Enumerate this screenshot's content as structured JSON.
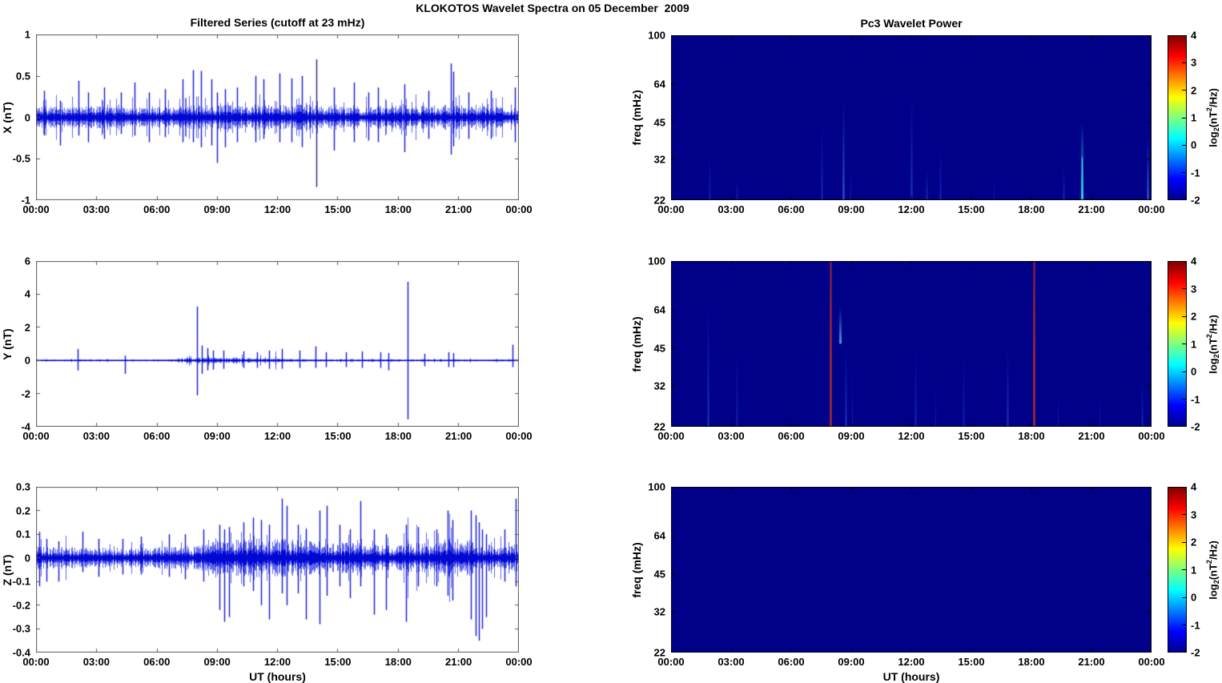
{
  "figure": {
    "title": "KLOKOTOS Wavelet Spectra on 05 December  2009"
  },
  "axes": {
    "time_ticks": [
      "00:00",
      "03:00",
      "06:00",
      "09:00",
      "12:00",
      "15:00",
      "18:00",
      "21:00",
      "00:00"
    ],
    "xlabel": "UT (hours)",
    "series_color": "#0008D2",
    "series_halo_color": "#1E28E6",
    "heatmap_background": "#000089",
    "line_axis_color": "#5a5a5a",
    "heat_axis_color": "#000000",
    "jet_stops": [
      [
        "0%",
        "#00008F"
      ],
      [
        "12.5%",
        "#0000FF"
      ],
      [
        "37.5%",
        "#00FFFF"
      ],
      [
        "62.5%",
        "#FFFF00"
      ],
      [
        "87.5%",
        "#FF0000"
      ],
      [
        "100%",
        "#800000"
      ]
    ]
  },
  "colorbar": {
    "values": [
      4,
      3,
      2,
      1,
      0,
      -1,
      -2
    ],
    "range": [
      -2,
      4
    ],
    "label_parts": {
      "prefix": "log",
      "sub": "2",
      "mid": "(nT",
      "sup": "2",
      "suffix": "/Hz)"
    }
  },
  "chart_data": [
    {
      "id": "x-filtered-series",
      "type": "line",
      "title": "Filtered Series (cutoff at 23 mHz)",
      "ylabel": "X (nT)",
      "ylim": [
        -1,
        1
      ],
      "yticks": [
        1,
        0.5,
        0,
        -0.5,
        -1
      ],
      "x_hours": [
        0,
        24
      ],
      "seed": 7,
      "noise": {
        "base": 0.085,
        "cap": 0.5,
        "envelope": [
          1,
          1,
          1,
          1,
          1,
          1,
          1,
          1.05,
          1.1,
          1.1,
          1.1,
          1.15,
          1.15,
          1.15,
          1.1,
          1.05,
          1,
          1,
          1.05,
          1.05,
          1.15,
          1.1,
          1,
          1
        ]
      },
      "spikes": [
        [
          0.4,
          0.32,
          -0.22
        ],
        [
          1.2,
          0.2,
          -0.34
        ],
        [
          2.1,
          0.44,
          -0.22
        ],
        [
          2.6,
          0.3,
          -0.3
        ],
        [
          3.4,
          0.36,
          -0.26
        ],
        [
          4.2,
          0.3,
          -0.2
        ],
        [
          4.9,
          0.42,
          -0.22
        ],
        [
          5.6,
          0.3,
          -0.3
        ],
        [
          6.4,
          0.34,
          -0.24
        ],
        [
          7.3,
          0.46,
          -0.3
        ],
        [
          7.8,
          0.57,
          -0.3
        ],
        [
          8.2,
          0.56,
          -0.36
        ],
        [
          8.7,
          0.46,
          -0.34
        ],
        [
          9.0,
          0.3,
          -0.55
        ],
        [
          9.4,
          0.34,
          -0.36
        ],
        [
          10.0,
          0.36,
          -0.3
        ],
        [
          10.9,
          0.5,
          -0.3
        ],
        [
          11.3,
          0.46,
          -0.26
        ],
        [
          12.1,
          0.53,
          -0.3
        ],
        [
          12.7,
          0.47,
          -0.3
        ],
        [
          13.2,
          0.5,
          -0.36
        ],
        [
          13.95,
          0.7,
          -0.84,
          "#15157a"
        ],
        [
          14.8,
          0.36,
          -0.4
        ],
        [
          15.8,
          0.42,
          -0.3
        ],
        [
          16.5,
          0.3,
          -0.28
        ],
        [
          17.0,
          0.36,
          -0.3
        ],
        [
          18.3,
          0.4,
          -0.42
        ],
        [
          19.5,
          0.32,
          -0.26
        ],
        [
          20.6,
          0.65,
          -0.45
        ],
        [
          20.75,
          0.55,
          -0.35
        ],
        [
          21.5,
          0.3,
          -0.26
        ],
        [
          22.6,
          0.32,
          -0.26
        ],
        [
          23.8,
          0.36,
          -0.3
        ]
      ]
    },
    {
      "id": "y-filtered-series",
      "type": "line",
      "title": "",
      "ylabel": "Y (nT)",
      "ylim": [
        -4,
        6
      ],
      "yticks": [
        6,
        4,
        2,
        0,
        -2,
        -4
      ],
      "x_hours": [
        0,
        24
      ],
      "seed": 13,
      "noise": {
        "base": 0.04,
        "cap": 0.55,
        "envelope": [
          0.7,
          0.7,
          0.7,
          0.7,
          0.7,
          0.7,
          0.7,
          1.2,
          3.2,
          2.6,
          2.2,
          2.2,
          1.8,
          1.2,
          1.1,
          1,
          1,
          0.9,
          0.9,
          0.8,
          0.8,
          0.8,
          0.8,
          0.9
        ]
      },
      "spikes": [
        [
          2.05,
          0.7,
          -0.6
        ],
        [
          4.4,
          0.3,
          -0.8
        ],
        [
          8.0,
          3.25,
          -2.1
        ],
        [
          8.25,
          0.9,
          -0.8
        ],
        [
          8.5,
          0.75,
          -0.6
        ],
        [
          8.8,
          0.6,
          -0.55
        ],
        [
          9.3,
          0.6,
          -0.5
        ],
        [
          10.3,
          0.55,
          -0.45
        ],
        [
          11.0,
          0.5,
          -0.45
        ],
        [
          11.6,
          0.6,
          -0.5
        ],
        [
          12.2,
          0.7,
          -0.5
        ],
        [
          13.1,
          0.6,
          -0.45
        ],
        [
          13.9,
          0.85,
          -0.45
        ],
        [
          14.4,
          0.5,
          -0.4
        ],
        [
          15.4,
          0.5,
          -0.4
        ],
        [
          16.2,
          0.55,
          -0.45
        ],
        [
          17.1,
          0.5,
          -0.45
        ],
        [
          17.5,
          0.45,
          -0.6
        ],
        [
          18.45,
          4.75,
          -3.55
        ],
        [
          19.3,
          0.4,
          -0.35
        ],
        [
          20.5,
          0.5,
          -0.4
        ],
        [
          20.75,
          0.45,
          -0.4
        ],
        [
          23.7,
          0.95,
          -0.4
        ]
      ]
    },
    {
      "id": "z-filtered-series",
      "type": "line",
      "title": "",
      "ylabel": "Z (nT)",
      "xlabel": "UT (hours)",
      "ylim": [
        -0.4,
        0.3
      ],
      "yticks": [
        0.3,
        0.2,
        0.1,
        0,
        -0.1,
        -0.2,
        -0.3,
        -0.4
      ],
      "x_hours": [
        0,
        24
      ],
      "seed": 21,
      "noise": {
        "base": 0.03,
        "cap": 0.2,
        "envelope": [
          1.1,
          0.9,
          0.9,
          0.9,
          0.9,
          0.9,
          1,
          1,
          1.2,
          1.5,
          1.6,
          1.7,
          1.7,
          1.6,
          1.5,
          1.4,
          1.3,
          1.2,
          1.2,
          1.3,
          1.5,
          1.7,
          1.4,
          1.1
        ]
      },
      "spikes": [
        [
          0.15,
          0.11,
          -0.12
        ],
        [
          0.5,
          0.08,
          -0.1
        ],
        [
          1.1,
          0.07,
          -0.1
        ],
        [
          2.3,
          0.11,
          -0.06
        ],
        [
          3.1,
          0.08,
          -0.08
        ],
        [
          4.3,
          0.08,
          -0.07
        ],
        [
          5.2,
          0.09,
          -0.07
        ],
        [
          6.6,
          0.1,
          -0.08
        ],
        [
          7.4,
          0.1,
          -0.09
        ],
        [
          8.3,
          0.12,
          -0.1
        ],
        [
          9.1,
          0.14,
          -0.22
        ],
        [
          9.35,
          0.12,
          -0.27
        ],
        [
          9.6,
          0.13,
          -0.25
        ],
        [
          10.3,
          0.15,
          -0.12
        ],
        [
          10.8,
          0.17,
          -0.14
        ],
        [
          11.2,
          0.16,
          -0.2
        ],
        [
          11.6,
          0.14,
          -0.26
        ],
        [
          12.2,
          0.25,
          -0.15
        ],
        [
          12.45,
          0.22,
          -0.2
        ],
        [
          13.0,
          0.14,
          -0.15
        ],
        [
          13.4,
          0.12,
          -0.26
        ],
        [
          14.1,
          0.2,
          -0.28
        ],
        [
          14.45,
          0.22,
          -0.16
        ],
        [
          15.1,
          0.14,
          -0.12
        ],
        [
          15.6,
          0.12,
          -0.17
        ],
        [
          16.1,
          0.24,
          -0.12
        ],
        [
          16.8,
          0.12,
          -0.24
        ],
        [
          17.4,
          0.1,
          -0.22
        ],
        [
          18.4,
          0.14,
          -0.27
        ],
        [
          19.0,
          0.13,
          -0.12
        ],
        [
          19.9,
          0.12,
          -0.12
        ],
        [
          20.45,
          0.2,
          -0.16
        ],
        [
          20.7,
          0.16,
          -0.18
        ],
        [
          21.6,
          0.2,
          -0.26
        ],
        [
          21.85,
          0.18,
          -0.33
        ],
        [
          22.0,
          0.15,
          -0.35
        ],
        [
          22.15,
          0.12,
          -0.3
        ],
        [
          22.35,
          0.1,
          -0.25
        ],
        [
          23.3,
          0.12,
          -0.1
        ],
        [
          23.85,
          0.25,
          -0.12
        ]
      ]
    },
    {
      "id": "pc3-wavelet-power-x",
      "type": "heatmap",
      "title": "Pc3 Wavelet Power",
      "ylabel": "freq (mHz)",
      "ylim": [
        22,
        100
      ],
      "yticks": [
        100,
        64,
        45,
        32,
        22
      ],
      "log_scale": true,
      "clim": [
        -2,
        4
      ],
      "x_hours": [
        0,
        24
      ],
      "streaks": [
        [
          1.9,
          22,
          34,
          "#2346E6",
          2,
          0.5,
          1
        ],
        [
          3.3,
          22,
          27,
          "#2346E6",
          2,
          0.45,
          1
        ],
        [
          7.5,
          22,
          46,
          "#2B58F0",
          2,
          0.5,
          1
        ],
        [
          8.6,
          22,
          57,
          "#55AAF5",
          2,
          0.6,
          1
        ],
        [
          8.95,
          22,
          30,
          "#2B58F0",
          1,
          0.5,
          1
        ],
        [
          12.0,
          22,
          60,
          "#3A6EF5",
          2,
          0.55,
          1
        ],
        [
          12.75,
          22,
          30,
          "#2B58F0",
          2,
          0.5,
          1
        ],
        [
          13.45,
          22,
          36,
          "#2B58F0",
          2,
          0.5,
          1
        ],
        [
          16.1,
          22,
          28,
          "#2346E6",
          1,
          0.4,
          1
        ],
        [
          19.6,
          22,
          30,
          "#2B58F0",
          2,
          0.5,
          1
        ],
        [
          20.5,
          22,
          45,
          "#35D8E8",
          3,
          0.95,
          1
        ],
        [
          23.8,
          22,
          40,
          "#4090F5",
          2,
          0.75,
          1
        ]
      ]
    },
    {
      "id": "pc3-wavelet-power-y",
      "type": "heatmap",
      "title": "",
      "ylabel": "freq (mHz)",
      "ylim": [
        22,
        100
      ],
      "yticks": [
        100,
        64,
        45,
        32,
        22
      ],
      "log_scale": true,
      "clim": [
        -2,
        4
      ],
      "x_hours": [
        0,
        24
      ],
      "streaks": [
        [
          1.85,
          22,
          72,
          "#3468F0",
          2,
          0.55,
          1
        ],
        [
          3.3,
          22,
          46,
          "#2850DC",
          2,
          0.45,
          1
        ],
        [
          7.95,
          22,
          100,
          "#E03A0E",
          2,
          0.95,
          0
        ],
        [
          8.45,
          47,
          66,
          "#5FC8F0",
          3,
          0.8,
          1
        ],
        [
          8.7,
          22,
          46,
          "#3468F0",
          2,
          0.55,
          1
        ],
        [
          9.05,
          22,
          40,
          "#2850DC",
          1,
          0.4,
          1
        ],
        [
          12.2,
          22,
          46,
          "#2850DC",
          2,
          0.5,
          1
        ],
        [
          13.2,
          22,
          34,
          "#2850DC",
          1,
          0.4,
          1
        ],
        [
          14.6,
          22,
          44,
          "#2850DC",
          2,
          0.45,
          1
        ],
        [
          16.8,
          22,
          46,
          "#3468F0",
          2,
          0.55,
          1
        ],
        [
          18.1,
          22,
          100,
          "#E03A0E",
          2,
          0.95,
          0
        ],
        [
          19.3,
          22,
          32,
          "#2850DC",
          1,
          0.4,
          1
        ],
        [
          21.4,
          22,
          30,
          "#2850DC",
          1,
          0.4,
          1
        ],
        [
          23.5,
          22,
          36,
          "#2850DC",
          2,
          0.5,
          1
        ]
      ]
    },
    {
      "id": "pc3-wavelet-power-z",
      "type": "heatmap",
      "title": "",
      "ylabel": "freq (mHz)",
      "xlabel": "UT (hours)",
      "ylim": [
        22,
        100
      ],
      "yticks": [
        100,
        64,
        45,
        32,
        22
      ],
      "log_scale": true,
      "clim": [
        -2,
        4
      ],
      "x_hours": [
        0,
        24
      ],
      "streaks": []
    }
  ]
}
